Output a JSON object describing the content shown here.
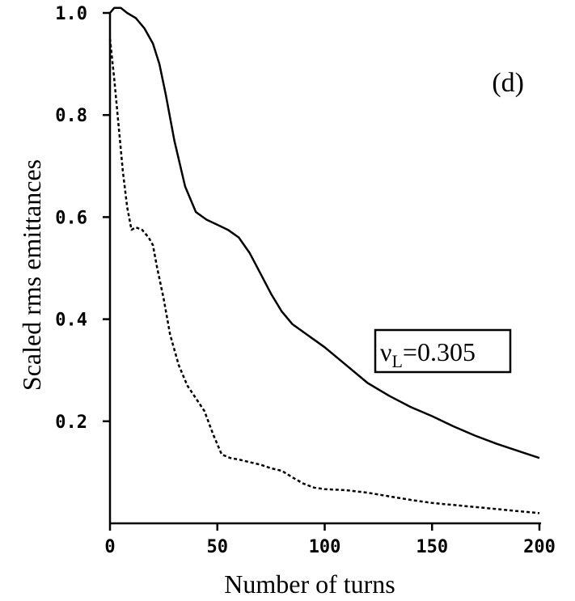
{
  "chart_data": {
    "type": "line",
    "panel_label": "(d)",
    "xlabel": "Number of turns",
    "ylabel": "Scaled rms emittances",
    "xlim": [
      0,
      200
    ],
    "ylim": [
      0.0,
      1.0
    ],
    "x_ticks": [
      0,
      50,
      100,
      150,
      200
    ],
    "x_tick_labels": [
      "0",
      "50",
      "100",
      "150",
      "200"
    ],
    "y_ticks": [
      0.2,
      0.4,
      0.6,
      0.8,
      1.0
    ],
    "y_tick_labels": [
      "0.2",
      "0.4",
      "0.6",
      "0.8",
      "1.0"
    ],
    "grid": false,
    "annotation": {
      "symbol": "ν",
      "subscript": "L",
      "text": "=0.305"
    },
    "series": [
      {
        "style": "solid",
        "x": [
          0,
          2,
          5,
          8,
          12,
          16,
          20,
          23,
          26,
          30,
          35,
          40,
          45,
          50,
          55,
          60,
          65,
          70,
          75,
          80,
          85,
          90,
          95,
          100,
          110,
          120,
          130,
          140,
          150,
          160,
          170,
          180,
          190,
          200
        ],
        "y": [
          1.0,
          1.01,
          1.01,
          1.0,
          0.99,
          0.97,
          0.94,
          0.9,
          0.84,
          0.75,
          0.66,
          0.61,
          0.595,
          0.585,
          0.575,
          0.56,
          0.53,
          0.49,
          0.45,
          0.415,
          0.39,
          0.375,
          0.36,
          0.345,
          0.31,
          0.275,
          0.25,
          0.228,
          0.21,
          0.19,
          0.172,
          0.156,
          0.142,
          0.128
        ]
      },
      {
        "style": "dashed",
        "x": [
          0,
          2,
          4,
          6,
          8,
          10,
          12,
          15,
          18,
          20,
          22,
          25,
          28,
          32,
          36,
          40,
          44,
          48,
          52,
          56,
          60,
          65,
          70,
          75,
          80,
          85,
          90,
          95,
          100,
          110,
          120,
          130,
          140,
          150,
          160,
          170,
          180,
          190,
          200
        ],
        "y": [
          0.95,
          0.87,
          0.78,
          0.69,
          0.62,
          0.575,
          0.58,
          0.575,
          0.56,
          0.545,
          0.5,
          0.44,
          0.37,
          0.31,
          0.27,
          0.245,
          0.22,
          0.175,
          0.135,
          0.128,
          0.125,
          0.12,
          0.115,
          0.108,
          0.103,
          0.09,
          0.078,
          0.07,
          0.067,
          0.065,
          0.06,
          0.053,
          0.046,
          0.04,
          0.036,
          0.032,
          0.028,
          0.024,
          0.02
        ]
      }
    ]
  }
}
